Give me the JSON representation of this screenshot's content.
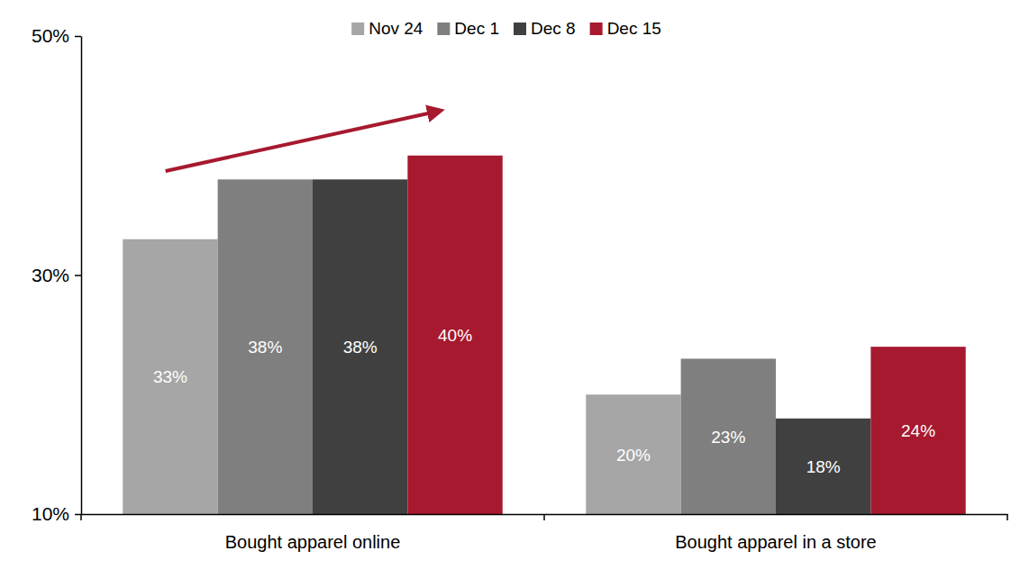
{
  "chart_data": {
    "type": "bar",
    "categories": [
      "Bought apparel online",
      "Bought apparel in a store"
    ],
    "series": [
      {
        "name": "Nov 24",
        "color": "#a6a6a6",
        "values": [
          33,
          20
        ],
        "value_labels": [
          "33%",
          "20%"
        ]
      },
      {
        "name": "Dec 1",
        "color": "#7f7f7f",
        "values": [
          38,
          23
        ],
        "value_labels": [
          "38%",
          "23%"
        ]
      },
      {
        "name": "Dec 8",
        "color": "#404040",
        "values": [
          38,
          18
        ],
        "value_labels": [
          "38%",
          "18%"
        ]
      },
      {
        "name": "Dec 15",
        "color": "#a6192e",
        "values": [
          40,
          24
        ],
        "value_labels": [
          "40%",
          "24%"
        ]
      }
    ],
    "ylim": [
      10,
      50
    ],
    "yticks": [
      {
        "value": 10,
        "label": "10%"
      },
      {
        "value": 30,
        "label": "30%"
      },
      {
        "value": 50,
        "label": "50%"
      }
    ],
    "grid": false,
    "data_labels": true,
    "legend": "top"
  }
}
